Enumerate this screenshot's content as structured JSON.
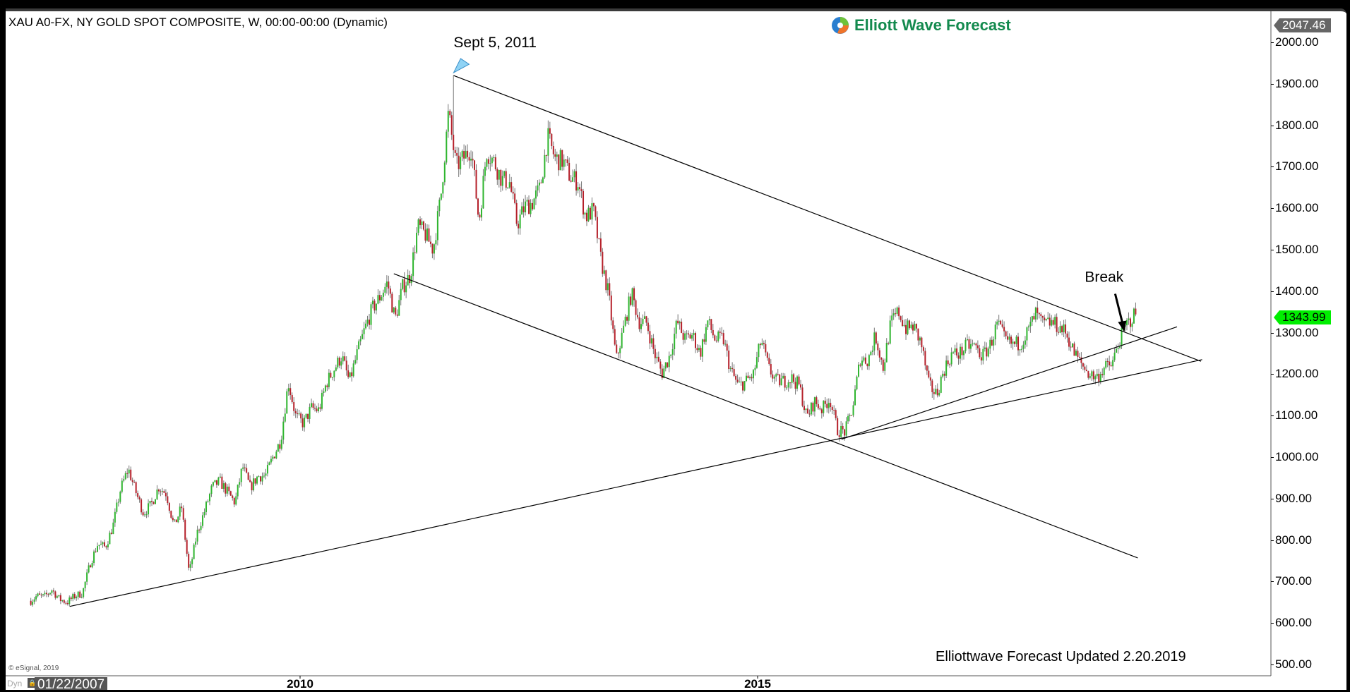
{
  "header": {
    "title": "XAU A0-FX, NY GOLD SPOT COMPOSITE, W, 00:00-00:00 (Dynamic)",
    "logo_text": "Elliott Wave Forecast"
  },
  "footer": {
    "watermark": "Elliottwave Forecast Updated 2.20.2019",
    "copyright": "© eSignal, 2019",
    "dyn_label": "Dyn",
    "start_date": "01/22/2007"
  },
  "colors": {
    "up": "#2fb52f",
    "down": "#b5202a",
    "wick": "#777777",
    "last_price_tag": "#00ee00",
    "high_tag": "#666666",
    "logo": "#138a4e",
    "marker": "#8fd3f5"
  },
  "chart_data": {
    "type": "candlestick",
    "interval": "weekly",
    "symbol": "XAU A0-FX",
    "ylim": [
      500,
      2047.46
    ],
    "y_ticks": [
      "500.00",
      "600.00",
      "700.00",
      "800.00",
      "900.00",
      "1000.00",
      "1100.00",
      "1200.00",
      "1300.00",
      "1400.00",
      "1500.00",
      "1600.00",
      "1700.00",
      "1800.00",
      "1900.00",
      "2000.00"
    ],
    "x_ticks": [
      "2010",
      "2015"
    ],
    "x_range": [
      "2007-01-22",
      "2019-02-20"
    ],
    "grid": false,
    "last_price": "1343.99",
    "scale_high": "2047.46",
    "monthly_close": [
      [
        "2007-01",
        650
      ],
      [
        "2007-02",
        665
      ],
      [
        "2007-03",
        663
      ],
      [
        "2007-04",
        680
      ],
      [
        "2007-05",
        657
      ],
      [
        "2007-06",
        650
      ],
      [
        "2007-07",
        665
      ],
      [
        "2007-08",
        672
      ],
      [
        "2007-09",
        743
      ],
      [
        "2007-10",
        790
      ],
      [
        "2007-11",
        783
      ],
      [
        "2007-12",
        834
      ],
      [
        "2008-01",
        923
      ],
      [
        "2008-02",
        972
      ],
      [
        "2008-03",
        916
      ],
      [
        "2008-04",
        865
      ],
      [
        "2008-05",
        885
      ],
      [
        "2008-06",
        928
      ],
      [
        "2008-07",
        912
      ],
      [
        "2008-08",
        833
      ],
      [
        "2008-09",
        880
      ],
      [
        "2008-10",
        718
      ],
      [
        "2008-11",
        815
      ],
      [
        "2008-12",
        869
      ],
      [
        "2009-01",
        927
      ],
      [
        "2009-02",
        942
      ],
      [
        "2009-03",
        916
      ],
      [
        "2009-04",
        890
      ],
      [
        "2009-05",
        978
      ],
      [
        "2009-06",
        926
      ],
      [
        "2009-07",
        954
      ],
      [
        "2009-08",
        955
      ],
      [
        "2009-09",
        1001
      ],
      [
        "2009-10",
        1040
      ],
      [
        "2009-11",
        1181
      ],
      [
        "2009-12",
        1096
      ],
      [
        "2010-01",
        1081
      ],
      [
        "2010-02",
        1118
      ],
      [
        "2010-03",
        1113
      ],
      [
        "2010-04",
        1179
      ],
      [
        "2010-05",
        1212
      ],
      [
        "2010-06",
        1244
      ],
      [
        "2010-07",
        1181
      ],
      [
        "2010-08",
        1248
      ],
      [
        "2010-09",
        1307
      ],
      [
        "2010-10",
        1357
      ],
      [
        "2010-11",
        1386
      ],
      [
        "2010-12",
        1421
      ],
      [
        "2011-01",
        1332
      ],
      [
        "2011-02",
        1411
      ],
      [
        "2011-03",
        1439
      ],
      [
        "2011-04",
        1556
      ],
      [
        "2011-05",
        1536
      ],
      [
        "2011-06",
        1500
      ],
      [
        "2011-07",
        1628
      ],
      [
        "2011-08",
        1830
      ],
      [
        "2011-09",
        1700
      ],
      [
        "2011-10",
        1722
      ],
      [
        "2011-11",
        1746
      ],
      [
        "2011-12",
        1566
      ],
      [
        "2012-01",
        1738
      ],
      [
        "2012-02",
        1711
      ],
      [
        "2012-03",
        1669
      ],
      [
        "2012-04",
        1664
      ],
      [
        "2012-05",
        1561
      ],
      [
        "2012-06",
        1604
      ],
      [
        "2012-07",
        1614
      ],
      [
        "2012-08",
        1648
      ],
      [
        "2012-09",
        1772
      ],
      [
        "2012-10",
        1719
      ],
      [
        "2012-11",
        1714
      ],
      [
        "2012-12",
        1675
      ],
      [
        "2013-01",
        1663
      ],
      [
        "2013-02",
        1579
      ],
      [
        "2013-03",
        1595
      ],
      [
        "2013-04",
        1476
      ],
      [
        "2013-05",
        1392
      ],
      [
        "2013-06",
        1234
      ],
      [
        "2013-07",
        1313
      ],
      [
        "2013-08",
        1396
      ],
      [
        "2013-09",
        1327
      ],
      [
        "2013-10",
        1323
      ],
      [
        "2013-11",
        1250
      ],
      [
        "2013-12",
        1202
      ],
      [
        "2014-01",
        1244
      ],
      [
        "2014-02",
        1326
      ],
      [
        "2014-03",
        1284
      ],
      [
        "2014-04",
        1295
      ],
      [
        "2014-05",
        1250
      ],
      [
        "2014-06",
        1327
      ],
      [
        "2014-07",
        1282
      ],
      [
        "2014-08",
        1287
      ],
      [
        "2014-09",
        1210
      ],
      [
        "2014-10",
        1171
      ],
      [
        "2014-11",
        1182
      ],
      [
        "2014-12",
        1199
      ],
      [
        "2015-01",
        1283
      ],
      [
        "2015-02",
        1213
      ],
      [
        "2015-03",
        1183
      ],
      [
        "2015-04",
        1183
      ],
      [
        "2015-05",
        1190
      ],
      [
        "2015-06",
        1172
      ],
      [
        "2015-07",
        1095
      ],
      [
        "2015-08",
        1134
      ],
      [
        "2015-09",
        1115
      ],
      [
        "2015-10",
        1142
      ],
      [
        "2015-11",
        1065
      ],
      [
        "2015-12",
        1061
      ],
      [
        "2016-01",
        1118
      ],
      [
        "2016-02",
        1238
      ],
      [
        "2016-03",
        1233
      ],
      [
        "2016-04",
        1293
      ],
      [
        "2016-05",
        1215
      ],
      [
        "2016-06",
        1322
      ],
      [
        "2016-07",
        1351
      ],
      [
        "2016-08",
        1309
      ],
      [
        "2016-09",
        1315
      ],
      [
        "2016-10",
        1273
      ],
      [
        "2016-11",
        1173
      ],
      [
        "2016-12",
        1151
      ],
      [
        "2017-01",
        1211
      ],
      [
        "2017-02",
        1249
      ],
      [
        "2017-03",
        1249
      ],
      [
        "2017-04",
        1268
      ],
      [
        "2017-05",
        1268
      ],
      [
        "2017-06",
        1242
      ],
      [
        "2017-07",
        1269
      ],
      [
        "2017-08",
        1322
      ],
      [
        "2017-09",
        1280
      ],
      [
        "2017-10",
        1271
      ],
      [
        "2017-11",
        1275
      ],
      [
        "2017-12",
        1303
      ],
      [
        "2018-01",
        1345
      ],
      [
        "2018-02",
        1318
      ],
      [
        "2018-03",
        1325
      ],
      [
        "2018-04",
        1315
      ],
      [
        "2018-05",
        1299
      ],
      [
        "2018-06",
        1253
      ],
      [
        "2018-07",
        1224
      ],
      [
        "2018-08",
        1201
      ],
      [
        "2018-09",
        1192
      ],
      [
        "2018-10",
        1215
      ],
      [
        "2018-11",
        1222
      ],
      [
        "2018-12",
        1282
      ],
      [
        "2019-01",
        1321
      ],
      [
        "2019-02",
        1344
      ]
    ],
    "trendlines": [
      {
        "from": [
          "2011-09-05",
          1920
        ],
        "to": [
          "2019-11-05",
          1231
        ]
      },
      {
        "from": [
          "2011-01-10",
          1442
        ],
        "to": [
          "2019-02-27",
          757
        ]
      },
      {
        "from": [
          "2007-06-25",
          640
        ],
        "to": [
          "2019-11-10",
          1235
        ]
      },
      {
        "from": [
          "2015-12-01",
          1043
        ],
        "to": [
          "2019-08-01",
          1314
        ]
      }
    ],
    "annotations": [
      {
        "text": "Sept 5, 2011",
        "date": "2011-09-05",
        "value": 1920,
        "marker": "triangle"
      },
      {
        "text": "Break",
        "date": "2019-01-01",
        "value": 1295,
        "marker": "arrow"
      }
    ]
  }
}
